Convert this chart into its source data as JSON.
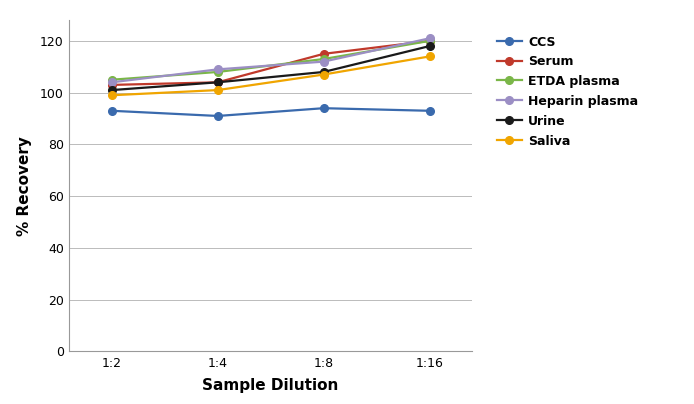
{
  "x_labels": [
    "1:2",
    "1:4",
    "1:8",
    "1:16"
  ],
  "x_positions": [
    0,
    1,
    2,
    3
  ],
  "series": [
    {
      "label": "CCS",
      "color": "#3a6aad",
      "marker": "o",
      "values": [
        93,
        91,
        94,
        93
      ]
    },
    {
      "label": "Serum",
      "color": "#c0392b",
      "marker": "o",
      "values": [
        103,
        104,
        115,
        120
      ]
    },
    {
      "label": "ETDA plasma",
      "color": "#7ab648",
      "marker": "o",
      "values": [
        105,
        108,
        113,
        120
      ]
    },
    {
      "label": "Heparin plasma",
      "color": "#9b8ec4",
      "marker": "o",
      "values": [
        104,
        109,
        112,
        121
      ]
    },
    {
      "label": "Urine",
      "color": "#1a1a1a",
      "marker": "o",
      "values": [
        101,
        104,
        108,
        118
      ]
    },
    {
      "label": "Saliva",
      "color": "#f0a500",
      "marker": "o",
      "values": [
        99,
        101,
        107,
        114
      ]
    }
  ],
  "xlabel": "Sample Dilution",
  "ylabel": "% Recovery",
  "ylim": [
    0,
    128
  ],
  "yticks": [
    0,
    20,
    40,
    60,
    80,
    100,
    120
  ],
  "background_color": "#ffffff",
  "grid_color": "#bbbbbb",
  "legend_fontsize": 9,
  "axis_label_fontsize": 11,
  "tick_fontsize": 9,
  "line_width": 1.6,
  "marker_size": 5.5
}
